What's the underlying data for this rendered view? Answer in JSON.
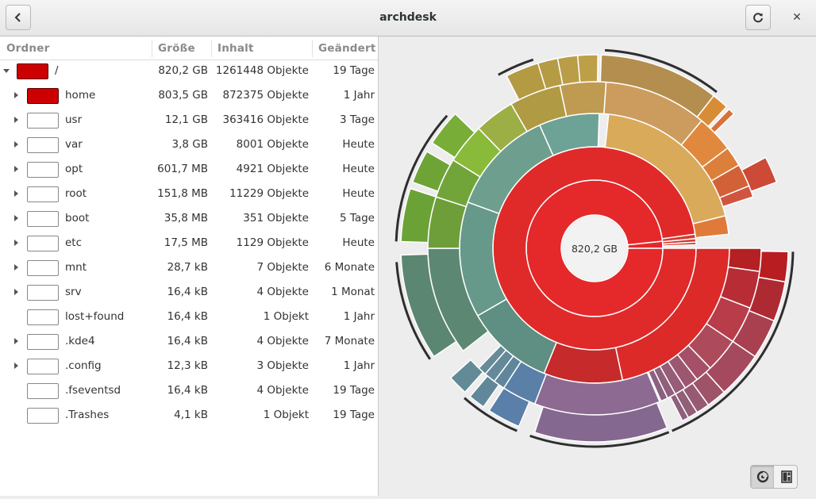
{
  "window": {
    "title": "archdesk"
  },
  "columns": {
    "name": "Ordner",
    "size": "Größe",
    "contents": "Inhalt",
    "modified": "Geändert"
  },
  "rows": [
    {
      "name": "/",
      "size": "820,2 GB",
      "contents": "1261448 Objekte",
      "modified": "19 Tage"
    },
    {
      "name": "home",
      "size": "803,5 GB",
      "contents": "872375 Objekte",
      "modified": "1 Jahr"
    },
    {
      "name": "usr",
      "size": "12,1 GB",
      "contents": "363416 Objekte",
      "modified": "3 Tage"
    },
    {
      "name": "var",
      "size": "3,8 GB",
      "contents": "8001 Objekte",
      "modified": "Heute"
    },
    {
      "name": "opt",
      "size": "601,7 MB",
      "contents": "4921 Objekte",
      "modified": "Heute"
    },
    {
      "name": "root",
      "size": "151,8 MB",
      "contents": "11229 Objekte",
      "modified": "Heute"
    },
    {
      "name": "boot",
      "size": "35,8 MB",
      "contents": "351 Objekte",
      "modified": "5 Tage"
    },
    {
      "name": "etc",
      "size": "17,5 MB",
      "contents": "1129 Objekte",
      "modified": "Heute"
    },
    {
      "name": "mnt",
      "size": "28,7 kB",
      "contents": "7 Objekte",
      "modified": "6 Monate"
    },
    {
      "name": "srv",
      "size": "16,4 kB",
      "contents": "4 Objekte",
      "modified": "1 Monat"
    },
    {
      "name": "lost+found",
      "size": "16,4 kB",
      "contents": "1 Objekt",
      "modified": "1 Jahr"
    },
    {
      "name": ".kde4",
      "size": "16,4 kB",
      "contents": "4 Objekte",
      "modified": "7 Monate"
    },
    {
      "name": ".config",
      "size": "12,3 kB",
      "contents": "3 Objekte",
      "modified": "1 Jahr"
    },
    {
      "name": ".fseventsd",
      "size": "16,4 kB",
      "contents": "4 Objekte",
      "modified": "19 Tage"
    },
    {
      "name": ".Trashes",
      "size": "4,1 kB",
      "contents": "1 Objekt",
      "modified": "19 Tage"
    }
  ],
  "chart": {
    "center_label": "820,2 GB"
  },
  "colors": {
    "accent_red": "#cc0000",
    "selected_swatch": "#cc0000"
  }
}
